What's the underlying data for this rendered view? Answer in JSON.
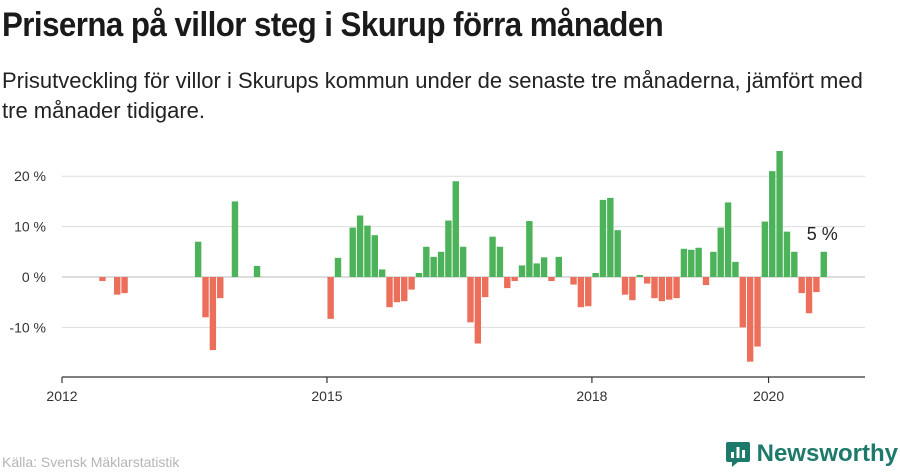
{
  "title": "Priserna på villor steg i Skurup förra månaden",
  "subtitle": "Prisutveckling för villor i Skurups kommun under de senaste tre månaderna, jämfört med tre månader tidigare.",
  "source": "Källa: Svensk Mäklarstatistik",
  "brand": "Newsworthy",
  "colors": {
    "positive": "#4cb35a",
    "negative": "#ec6f5b",
    "grid": "#dddddd",
    "axis": "#333333",
    "brand": "#1d7a6a"
  },
  "chart_data": {
    "type": "bar",
    "xlabel": "",
    "ylabel": "",
    "ylim": [
      -20,
      25
    ],
    "x_ticks": [
      "2012",
      "2015",
      "2018",
      "2020"
    ],
    "y_ticks": [
      -10,
      0,
      10,
      20
    ],
    "y_tick_labels": [
      "-10 %",
      "0 %",
      "10 %",
      "20 %"
    ],
    "annotation": "5 %",
    "series": [
      {
        "values": [
          {
            "x": "2012-06",
            "y": -0.8
          },
          {
            "x": "2012-08",
            "y": -3.5
          },
          {
            "x": "2012-09",
            "y": -3.2
          },
          {
            "x": "2013-07",
            "y": 7.0
          },
          {
            "x": "2013-08",
            "y": -8.0
          },
          {
            "x": "2013-09",
            "y": -14.5
          },
          {
            "x": "2013-10",
            "y": -4.2
          },
          {
            "x": "2013-12",
            "y": 15.0
          },
          {
            "x": "2014-03",
            "y": 2.2
          },
          {
            "x": "2015-01",
            "y": -8.3
          },
          {
            "x": "2015-02",
            "y": 3.8
          },
          {
            "x": "2015-04",
            "y": 9.8
          },
          {
            "x": "2015-05",
            "y": 12.2
          },
          {
            "x": "2015-06",
            "y": 10.2
          },
          {
            "x": "2015-07",
            "y": 8.3
          },
          {
            "x": "2015-08",
            "y": 1.5
          },
          {
            "x": "2015-09",
            "y": -6.0
          },
          {
            "x": "2015-10",
            "y": -5.0
          },
          {
            "x": "2015-11",
            "y": -4.8
          },
          {
            "x": "2015-12",
            "y": -2.5
          },
          {
            "x": "2016-01",
            "y": 0.8
          },
          {
            "x": "2016-02",
            "y": 6.0
          },
          {
            "x": "2016-03",
            "y": 4.0
          },
          {
            "x": "2016-04",
            "y": 5.0
          },
          {
            "x": "2016-05",
            "y": 11.2
          },
          {
            "x": "2016-06",
            "y": 19.0
          },
          {
            "x": "2016-07",
            "y": 6.0
          },
          {
            "x": "2016-08",
            "y": -9.0
          },
          {
            "x": "2016-09",
            "y": -13.2
          },
          {
            "x": "2016-10",
            "y": -4.0
          },
          {
            "x": "2016-11",
            "y": 8.0
          },
          {
            "x": "2016-12",
            "y": 6.0
          },
          {
            "x": "2017-01",
            "y": -2.2
          },
          {
            "x": "2017-02",
            "y": -0.8
          },
          {
            "x": "2017-03",
            "y": 2.3
          },
          {
            "x": "2017-04",
            "y": 11.1
          },
          {
            "x": "2017-05",
            "y": 2.7
          },
          {
            "x": "2017-06",
            "y": 3.9
          },
          {
            "x": "2017-07",
            "y": -0.8
          },
          {
            "x": "2017-08",
            "y": 4.0
          },
          {
            "x": "2017-10",
            "y": -1.5
          },
          {
            "x": "2017-11",
            "y": -6.0
          },
          {
            "x": "2017-12",
            "y": -5.8
          },
          {
            "x": "2018-01",
            "y": 0.8
          },
          {
            "x": "2018-02",
            "y": 15.3
          },
          {
            "x": "2018-03",
            "y": 15.7
          },
          {
            "x": "2018-04",
            "y": 9.3
          },
          {
            "x": "2018-05",
            "y": -3.5
          },
          {
            "x": "2018-06",
            "y": -4.6
          },
          {
            "x": "2018-07",
            "y": 0.4
          },
          {
            "x": "2018-08",
            "y": -1.3
          },
          {
            "x": "2018-09",
            "y": -4.2
          },
          {
            "x": "2018-10",
            "y": -4.8
          },
          {
            "x": "2018-11",
            "y": -4.5
          },
          {
            "x": "2018-12",
            "y": -4.2
          },
          {
            "x": "2019-01",
            "y": 5.6
          },
          {
            "x": "2019-02",
            "y": 5.4
          },
          {
            "x": "2019-03",
            "y": 5.8
          },
          {
            "x": "2019-04",
            "y": -1.6
          },
          {
            "x": "2019-05",
            "y": 5.0
          },
          {
            "x": "2019-06",
            "y": 9.8
          },
          {
            "x": "2019-07",
            "y": 14.8
          },
          {
            "x": "2019-08",
            "y": 3.0
          },
          {
            "x": "2019-09",
            "y": -10.0
          },
          {
            "x": "2019-10",
            "y": -16.8
          },
          {
            "x": "2019-11",
            "y": -13.8
          },
          {
            "x": "2019-12",
            "y": 11.0
          },
          {
            "x": "2020-01",
            "y": 21.0
          },
          {
            "x": "2020-02",
            "y": 25.0
          },
          {
            "x": "2020-03",
            "y": 9.0
          },
          {
            "x": "2020-04",
            "y": 5.0
          },
          {
            "x": "2020-05",
            "y": -3.2
          },
          {
            "x": "2020-06",
            "y": -7.2
          },
          {
            "x": "2020-07",
            "y": -3.0
          },
          {
            "x": "2020-08",
            "y": 5.0
          }
        ]
      }
    ]
  }
}
